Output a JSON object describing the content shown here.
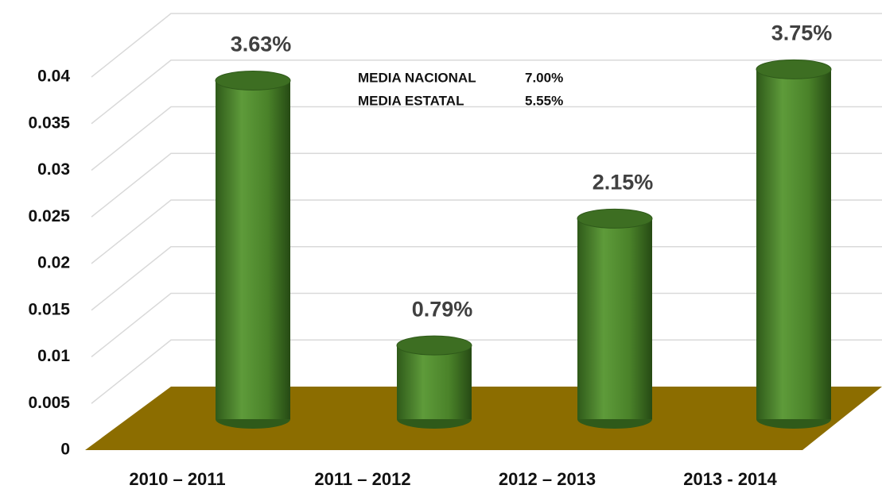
{
  "chart_data": {
    "type": "bar",
    "categories": [
      "2010 – 2011",
      "2011 – 2012",
      "2012 – 2013",
      "2013 - 2014"
    ],
    "values": [
      0.0363,
      0.0079,
      0.0215,
      0.0375
    ],
    "value_labels": [
      "3.63%",
      "0.79%",
      "2.15%",
      "3.75%"
    ],
    "color": "#4e8a2e",
    "floor_color": "#8c6d00",
    "ylim": [
      0,
      0.04
    ],
    "yticks": [
      0,
      0.005,
      0.01,
      0.015,
      0.02,
      0.025,
      0.03,
      0.035,
      0.04
    ],
    "grid": true,
    "annotations": [
      {
        "label": "MEDIA NACIONAL",
        "value": "7.00%"
      },
      {
        "label": "MEDIA ESTATAL",
        "value": "5.55%"
      }
    ]
  }
}
